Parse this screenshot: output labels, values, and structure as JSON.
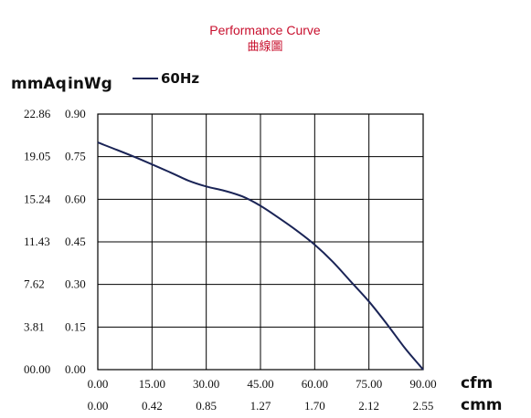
{
  "title": "Performance Curve",
  "title_zh": "曲線圖",
  "y_units": {
    "left": "mmAq",
    "right": "inWg"
  },
  "x_units": {
    "top": "cfm",
    "bottom": "cmm"
  },
  "colors": {
    "curve": "#1a2456",
    "title": "#c8102e",
    "grid": "#000000"
  },
  "chart_data": {
    "type": "line",
    "title": "Performance Curve",
    "xlabel": "cfm",
    "ylabel": "inWg",
    "xlim": [
      0,
      90
    ],
    "ylim": [
      0,
      0.9
    ],
    "grid": true,
    "legend_position": "top-left",
    "x_ticks": [
      "0.00",
      "15.00",
      "30.00",
      "45.00",
      "60.00",
      "75.00",
      "90.00"
    ],
    "x_ticks_secondary": [
      "0.00",
      "0.42",
      "0.85",
      "1.27",
      "1.70",
      "2.12",
      "2.55"
    ],
    "y_ticks": [
      "0.00",
      "0.15",
      "0.30",
      "0.45",
      "0.60",
      "0.75",
      "0.90"
    ],
    "y_ticks_secondary": [
      "00.00",
      "3.81",
      "7.62",
      "11.43",
      "15.24",
      "19.05",
      "22.86"
    ],
    "series": [
      {
        "name": "60Hz",
        "x": [
          0,
          10,
          20,
          25,
          30,
          35,
          40,
          45,
          50,
          55,
          60,
          65,
          70,
          75,
          80,
          85,
          89,
          90
        ],
        "y": [
          0.8,
          0.75,
          0.695,
          0.666,
          0.645,
          0.63,
          0.61,
          0.577,
          0.535,
          0.49,
          0.44,
          0.38,
          0.31,
          0.24,
          0.16,
          0.075,
          0.015,
          0.0
        ]
      }
    ]
  }
}
